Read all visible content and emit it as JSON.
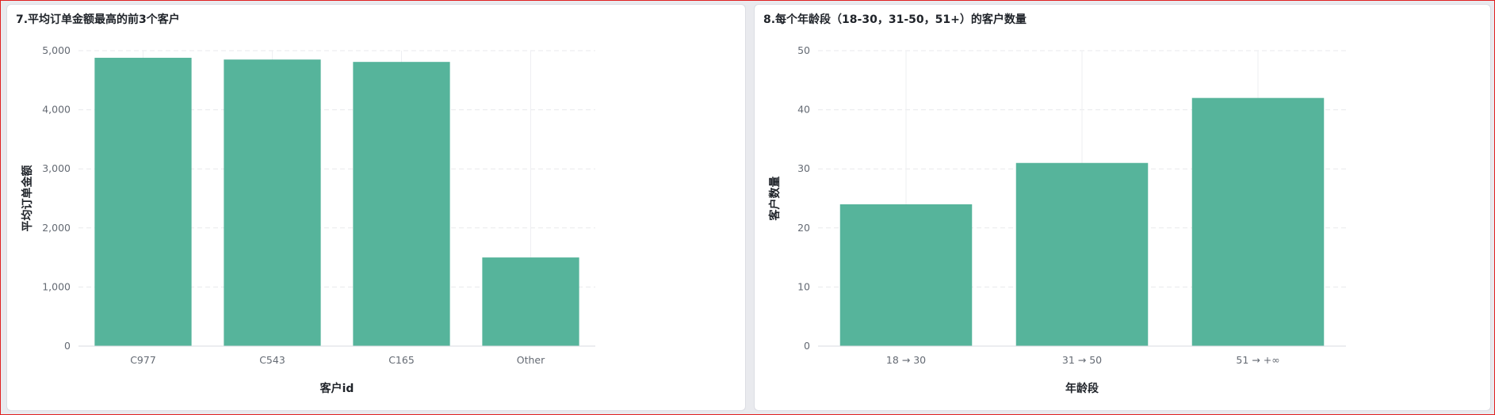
{
  "colors": {
    "bar": "#56b49b"
  },
  "chart_data": [
    {
      "type": "bar",
      "title": "7.平均订单金额最高的前3个客户",
      "categories": [
        "C977",
        "C543",
        "C165",
        "Other"
      ],
      "values": [
        4880,
        4850,
        4810,
        1500
      ],
      "yticks": [
        "0",
        "1,000",
        "2,000",
        "3,000",
        "4,000",
        "5,000"
      ],
      "ylim": [
        0,
        5000
      ],
      "xlabel": "客户id",
      "ylabel": "平均订单金额",
      "grid": true
    },
    {
      "type": "bar",
      "title": "8.每个年龄段（18-30，31-50，51+）的客户数量",
      "categories": [
        "18 → 30",
        "31 → 50",
        "51 → +∞"
      ],
      "values": [
        24,
        31,
        42
      ],
      "yticks": [
        "0",
        "10",
        "20",
        "30",
        "40",
        "50"
      ],
      "ylim": [
        0,
        50
      ],
      "xlabel": "年龄段",
      "ylabel": "客户数量",
      "grid": true
    }
  ]
}
